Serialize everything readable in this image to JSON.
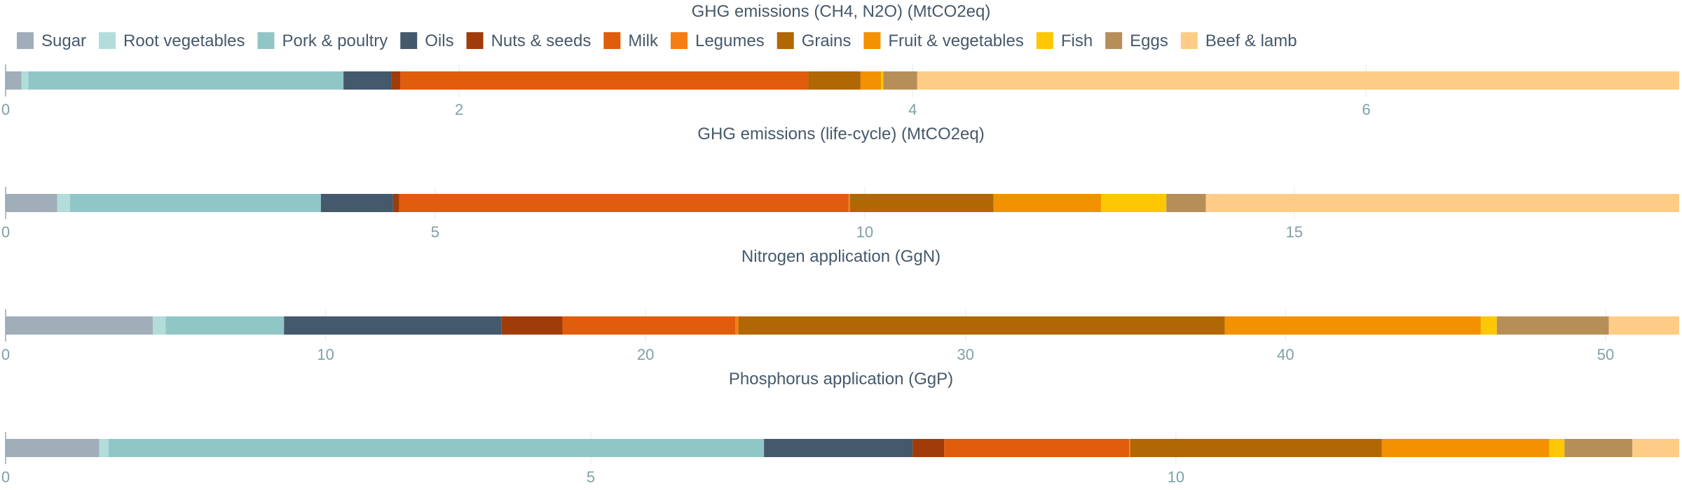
{
  "chart_data": {
    "type": "bar",
    "orientation": "horizontal-stacked",
    "grid": true,
    "legend_position": "top",
    "categories": [
      "Sugar",
      "Root vegetables",
      "Pork & poultry",
      "Oils",
      "Nuts & seeds",
      "Milk",
      "Legumes",
      "Grains",
      "Fruit & vegetables",
      "Fish",
      "Eggs",
      "Beef & lamb"
    ],
    "colors": [
      "#a1aeb9",
      "#b2ddda",
      "#91c6c7",
      "#44596c",
      "#a03c0a",
      "#e05d0c",
      "#f57e14",
      "#b16703",
      "#f39100",
      "#fdc803",
      "#b68f58",
      "#fecc86"
    ],
    "panels": [
      {
        "title": "GHG emissions (CH4, N2O) (MtCO2eq)",
        "xlim": [
          0,
          7.38
        ],
        "ticks": [
          0,
          2,
          4,
          6
        ],
        "values": [
          0.07,
          0.03,
          1.39,
          0.21,
          0.04,
          1.8,
          0.0,
          0.23,
          0.09,
          0.01,
          0.15,
          3.36
        ]
      },
      {
        "title": "GHG emissions (life-cycle) (MtCO2eq)",
        "xlim": [
          0,
          19.48
        ],
        "ticks": [
          0,
          5,
          10,
          15
        ],
        "values": [
          0.6,
          0.15,
          2.92,
          0.84,
          0.07,
          5.23,
          0.02,
          1.67,
          1.25,
          0.76,
          0.46,
          5.51
        ]
      },
      {
        "title": "Nitrogen application (GgN)",
        "xlim": [
          0,
          52.3
        ],
        "ticks": [
          0,
          10,
          20,
          30,
          40,
          50
        ],
        "values": [
          4.6,
          0.4,
          3.7,
          6.8,
          1.9,
          5.4,
          0.1,
          15.2,
          8.0,
          0.5,
          3.5,
          2.2
        ]
      },
      {
        "title": "Phosphorus application (GgP)",
        "xlim": [
          0,
          14.3
        ],
        "ticks": [
          0,
          5,
          10
        ],
        "values": [
          0.8,
          0.08,
          5.6,
          1.27,
          0.27,
          1.58,
          0.01,
          2.15,
          1.43,
          0.13,
          0.58,
          0.4
        ]
      }
    ]
  }
}
